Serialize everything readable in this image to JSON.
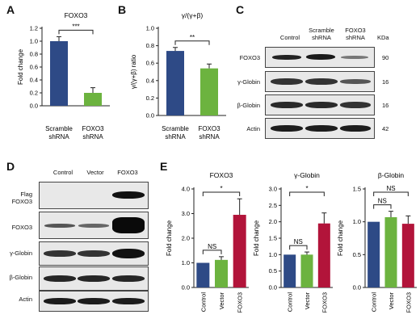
{
  "letters": {
    "a": "A",
    "b": "B",
    "c": "C",
    "d": "D",
    "e": "E"
  },
  "colors": {
    "blue": "#2e4a86",
    "green": "#6cb33f",
    "red": "#b2143a"
  },
  "chart_data": [
    {
      "id": "A",
      "type": "bar",
      "title": "FOXO3",
      "ylabel": "Fold change",
      "categories": [
        "Scramble shRNA",
        "FOXO3 shRNA"
      ],
      "values": [
        1.0,
        0.2
      ],
      "errors": [
        0.07,
        0.08
      ],
      "ylim": [
        0,
        1.2
      ],
      "yticks": [
        "0.0",
        "0.2",
        "0.4",
        "0.6",
        "0.8",
        "1.0",
        "1.2"
      ],
      "significance": [
        {
          "from": 0,
          "to": 1,
          "label": "***"
        }
      ]
    },
    {
      "id": "B",
      "type": "bar",
      "title": "γ/(γ+β)",
      "ylabel": "γ/(γ+β) ratio",
      "categories": [
        "Scramble shRNA",
        "FOXO3 shRNA"
      ],
      "values": [
        0.74,
        0.54
      ],
      "errors": [
        0.04,
        0.05
      ],
      "ylim": [
        0,
        1.0
      ],
      "yticks": [
        "0.0",
        "0.2",
        "0.4",
        "0.6",
        "0.8",
        "1.0"
      ],
      "significance": [
        {
          "from": 0,
          "to": 1,
          "label": "**"
        }
      ]
    },
    {
      "id": "E1",
      "type": "bar",
      "title": "FOXO3",
      "ylabel": "Fold change",
      "categories": [
        "Control",
        "Vector",
        "FOXO3"
      ],
      "values": [
        1.0,
        1.12,
        2.95
      ],
      "errors": [
        0.0,
        0.13,
        0.65
      ],
      "ylim": [
        0,
        4.0
      ],
      "yticks": [
        "0.0",
        "1.0",
        "2.0",
        "3.0",
        "4.0"
      ],
      "significance": [
        {
          "from": 0,
          "to": 1,
          "label": "NS"
        },
        {
          "from": 0,
          "to": 2,
          "label": "*"
        }
      ]
    },
    {
      "id": "E2",
      "type": "bar",
      "title": "γ-Globin",
      "ylabel": "Fold change",
      "categories": [
        "Control",
        "Vector",
        "FOXO3"
      ],
      "values": [
        1.0,
        1.0,
        1.95
      ],
      "errors": [
        0.0,
        0.08,
        0.32
      ],
      "ylim": [
        0,
        3.0
      ],
      "yticks": [
        "0.0",
        "0.5",
        "1.0",
        "1.5",
        "2.0",
        "2.5",
        "3.0"
      ],
      "significance": [
        {
          "from": 0,
          "to": 1,
          "label": "NS"
        },
        {
          "from": 0,
          "to": 2,
          "label": "*"
        }
      ]
    },
    {
      "id": "E3",
      "type": "bar",
      "title": "β-Globin",
      "ylabel": "Fold change",
      "categories": [
        "Control",
        "Vector",
        "FOXO3"
      ],
      "values": [
        1.0,
        1.07,
        0.97
      ],
      "errors": [
        0.0,
        0.09,
        0.12
      ],
      "ylim": [
        0,
        1.5
      ],
      "yticks": [
        "0.0",
        "0.5",
        "1.0",
        "1.5"
      ],
      "significance": [
        {
          "from": 0,
          "to": 1,
          "label": "NS"
        },
        {
          "from": 0,
          "to": 2,
          "label": "NS"
        }
      ]
    }
  ],
  "blotC": {
    "columns": [
      "Control",
      "Scramble shRNA",
      "FOXO3 shRNA"
    ],
    "kda_header": "KDa",
    "rows": [
      {
        "label": "FOXO3",
        "kda": "90"
      },
      {
        "label": "γ-Globin",
        "kda": "16"
      },
      {
        "label": "β-Globin",
        "kda": "16"
      },
      {
        "label": "Actin",
        "kda": "42"
      }
    ]
  },
  "blotD": {
    "columns": [
      "Control",
      "Vector",
      "FOXO3"
    ],
    "rows": [
      {
        "label": "Flag FOXO3"
      },
      {
        "label": "FOXO3"
      },
      {
        "label": "γ-Globin"
      },
      {
        "label": "β-Globin"
      },
      {
        "label": "Actin"
      }
    ]
  }
}
